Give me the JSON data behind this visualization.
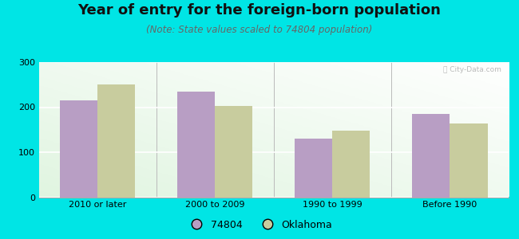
{
  "title": "Year of entry for the foreign-born population",
  "subtitle": "(Note: State values scaled to 74804 population)",
  "categories": [
    "2010 or later",
    "2000 to 2009",
    "1990 to 1999",
    "Before 1990"
  ],
  "values_74804": [
    215,
    235,
    130,
    185
  ],
  "values_oklahoma": [
    250,
    202,
    148,
    163
  ],
  "color_74804": "#b89ec4",
  "color_oklahoma": "#c8cc9e",
  "legend_74804": "74804",
  "legend_oklahoma": "Oklahoma",
  "ylim": [
    0,
    300
  ],
  "yticks": [
    0,
    100,
    200,
    300
  ],
  "outer_background": "#00e5e5",
  "bar_width": 0.32,
  "title_fontsize": 13,
  "subtitle_fontsize": 8.5,
  "tick_fontsize": 8,
  "legend_fontsize": 9
}
